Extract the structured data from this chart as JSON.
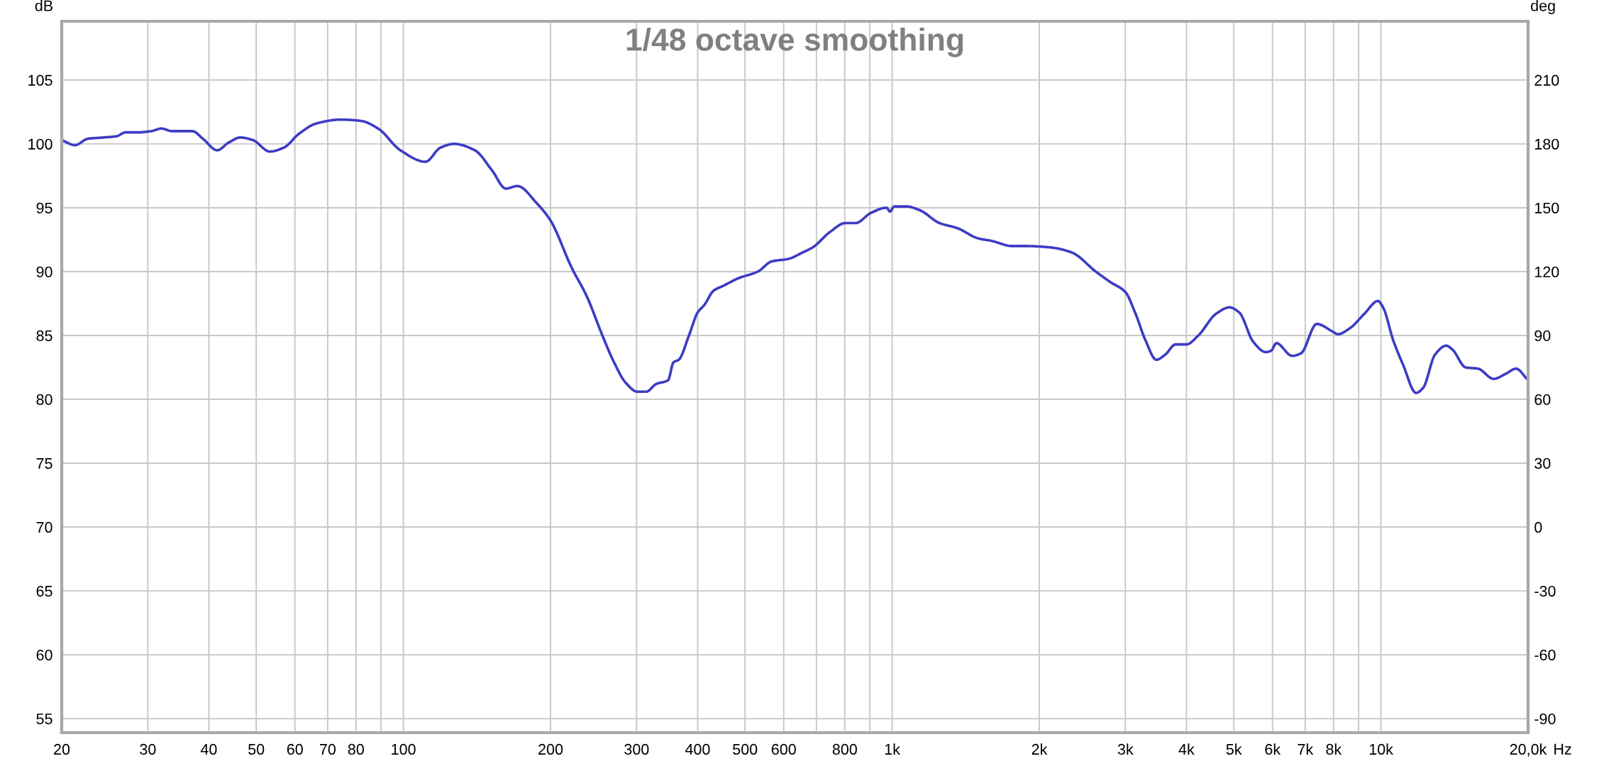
{
  "chart_data": {
    "type": "line",
    "title": "1/48 octave smoothing",
    "xlabel": "Hz",
    "ylabel": "dB",
    "y2label": "deg",
    "x": [
      20,
      21.3,
      22.6,
      24.3,
      25.9,
      27.0,
      28.6,
      30.5,
      32.0,
      33.6,
      37.0,
      38.9,
      41.6,
      43.9,
      46.4,
      49.2,
      53.3,
      56.9,
      61.2,
      66.4,
      74.3,
      81.9,
      88.8,
      98.6,
      111,
      119,
      127,
      140,
      152,
      162,
      171,
      188,
      200,
      221,
      237,
      256,
      269,
      285,
      301,
      314,
      329,
      348,
      357,
      366,
      384,
      400,
      413,
      431,
      452,
      486,
      531,
      567,
      614,
      656,
      688,
      746,
      802,
      842,
      905,
      974,
      990,
      1010,
      1070,
      1140,
      1250,
      1360,
      1500,
      1600,
      1760,
      1880,
      2100,
      2330,
      2610,
      2790,
      3000,
      3140,
      3300,
      3470,
      3620,
      3800,
      4000,
      4230,
      4600,
      4900,
      5130,
      5480,
      5810,
      5960,
      6110,
      6580,
      6860,
      7390,
      7970,
      8160,
      8660,
      9250,
      9860,
      10100,
      10600,
      11100,
      11800,
      12200,
      12900,
      13600,
      14000,
      14900,
      15800,
      17000,
      18000,
      18900,
      19900
    ],
    "series": [
      {
        "color": "#3c3cc4",
        "values": [
          100.3,
          99.9,
          100.4,
          100.5,
          100.6,
          100.9,
          100.9,
          101.0,
          101.2,
          101.0,
          101.0,
          100.4,
          99.5,
          100.1,
          100.5,
          100.3,
          99.4,
          99.7,
          100.8,
          101.6,
          101.9,
          101.8,
          101.2,
          99.5,
          98.6,
          99.7,
          100.0,
          99.5,
          97.9,
          96.5,
          96.7,
          95.3,
          94.0,
          90.3,
          88.1,
          84.9,
          83.0,
          81.3,
          80.6,
          80.6,
          81.2,
          81.5,
          82.9,
          83.1,
          85.0,
          86.8,
          87.4,
          88.5,
          88.9,
          89.5,
          90.0,
          90.8,
          91.0,
          91.5,
          91.9,
          93.1,
          93.8,
          93.8,
          94.6,
          95.0,
          94.7,
          95.1,
          95.1,
          94.8,
          93.8,
          93.4,
          92.6,
          92.4,
          92.0,
          92.0,
          91.9,
          91.5,
          90.0,
          89.2,
          88.4,
          86.8,
          84.6,
          83.1,
          83.5,
          84.3,
          84.3,
          85.0,
          86.7,
          87.2,
          86.8,
          84.5,
          83.7,
          83.8,
          84.4,
          83.4,
          83.6,
          85.9,
          85.3,
          85.1,
          85.6,
          86.7,
          87.7,
          87.2,
          84.6,
          82.7,
          80.5,
          80.9,
          83.5,
          84.2,
          83.9,
          82.5,
          82.4,
          81.6,
          82.0,
          82.4,
          81.6
        ]
      }
    ],
    "log": "x",
    "grid": true,
    "xlim": [
      20,
      20000
    ],
    "xticks": [
      20,
      30,
      40,
      50,
      60,
      70,
      80,
      {
        "value": 90,
        "label": null
      },
      100,
      200,
      300,
      400,
      500,
      600,
      {
        "value": 700,
        "label": null
      },
      800,
      {
        "value": 900,
        "label": null
      },
      {
        "value": 1000,
        "label": "1k"
      },
      {
        "value": 2000,
        "label": "2k"
      },
      {
        "value": 3000,
        "label": "3k"
      },
      {
        "value": 4000,
        "label": "4k"
      },
      {
        "value": 5000,
        "label": "5k"
      },
      {
        "value": 6000,
        "label": "6k"
      },
      {
        "value": 7000,
        "label": "7k"
      },
      {
        "value": 8000,
        "label": "8k"
      },
      {
        "value": 9000,
        "label": null
      },
      {
        "value": 10000,
        "label": "10k"
      },
      {
        "value": 20000,
        "label": "20,0k"
      }
    ],
    "ylim": [
      53.9,
      109.6
    ],
    "yticks": [
      55,
      60,
      65,
      70,
      75,
      80,
      85,
      90,
      95,
      100,
      105
    ],
    "y2lim": [
      -96.6,
      237.6
    ],
    "y2ticks": [
      -90,
      -60,
      -30,
      0,
      30,
      60,
      90,
      120,
      150,
      180,
      210
    ]
  }
}
